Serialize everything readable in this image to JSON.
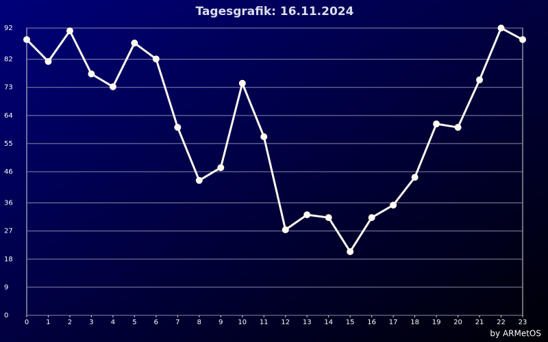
{
  "chart_data": {
    "type": "line",
    "title": "Tagesgrafik: 16.11.2024",
    "credit": "by ARMetOS",
    "x": [
      0,
      1,
      2,
      3,
      4,
      5,
      6,
      7,
      8,
      9,
      10,
      11,
      12,
      13,
      14,
      15,
      16,
      17,
      18,
      19,
      20,
      21,
      22,
      23
    ],
    "series": [
      {
        "color": "#fffaf0",
        "values": [
          88.3,
          81.3,
          91.1,
          77.3,
          73.2,
          87.2,
          82.1,
          60.2,
          43.2,
          47.3,
          74.3,
          57.2,
          27.4,
          32.2,
          31.3,
          20.4,
          31.3,
          35.3,
          44.2,
          61.3,
          60.2,
          75.4,
          92,
          88.3
        ]
      }
    ],
    "xlim": [
      0,
      23
    ],
    "xticks": [
      0,
      1,
      2,
      3,
      4,
      5,
      6,
      7,
      8,
      9,
      10,
      11,
      12,
      13,
      14,
      15,
      16,
      17,
      18,
      19,
      20,
      21,
      22,
      23
    ],
    "ylim": [
      0,
      92
    ],
    "yticks": [
      0,
      9,
      18,
      27,
      36,
      46,
      55,
      64,
      73,
      82,
      92
    ],
    "grid": true
  }
}
